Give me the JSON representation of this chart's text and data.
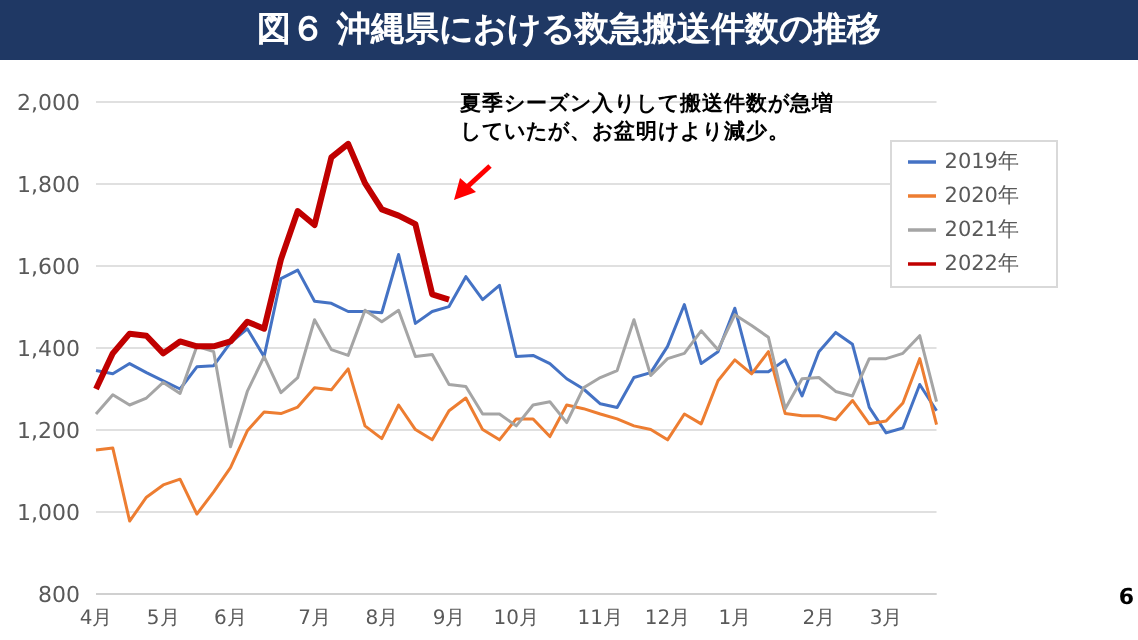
{
  "chart_data": {
    "type": "line",
    "title": "図６ 沖縄県における救急搬送件数の推移",
    "categories": [
      "4月",
      null,
      null,
      null,
      "5月",
      null,
      null,
      null,
      "6月",
      null,
      null,
      null,
      null,
      "7月",
      null,
      null,
      null,
      "8月",
      null,
      null,
      null,
      "9月",
      null,
      null,
      null,
      "10月",
      null,
      null,
      null,
      null,
      "11月",
      null,
      null,
      null,
      "12月",
      null,
      null,
      null,
      "1月",
      null,
      null,
      null,
      null,
      "2月",
      null,
      null,
      null,
      "3月",
      null,
      null,
      null
    ],
    "series": [
      {
        "name": "2019年",
        "color": "#4472c4",
        "values": [
          1345,
          1337,
          1362,
          1340,
          1320,
          1300,
          1354,
          1357,
          1413,
          1447,
          1379,
          1569,
          1590,
          1514,
          1509,
          1489,
          1489,
          1486,
          1628,
          1460,
          1489,
          1501,
          1574,
          1518,
          1553,
          1379,
          1382,
          1362,
          1325,
          1300,
          1264,
          1255,
          1328,
          1340,
          1404,
          1506,
          1362,
          1391,
          1497,
          1342,
          1342,
          1371,
          1283,
          1391,
          1438,
          1409,
          1255,
          1193,
          1205,
          1311,
          1247
        ]
      },
      {
        "name": "2020年",
        "color": "#ed7d31",
        "values": [
          1151,
          1156,
          978,
          1036,
          1066,
          1080,
          995,
          1049,
          1108,
          1198,
          1244,
          1240,
          1256,
          1303,
          1298,
          1349,
          1210,
          1179,
          1261,
          1201,
          1176,
          1247,
          1278,
          1201,
          1176,
          1227,
          1227,
          1184,
          1261,
          1252,
          1239,
          1227,
          1210,
          1201,
          1176,
          1239,
          1215,
          1320,
          1371,
          1337,
          1391,
          1240,
          1235,
          1235,
          1225,
          1272,
          1215,
          1222,
          1266,
          1374,
          1213
        ]
      },
      {
        "name": "2021年",
        "color": "#a5a5a5",
        "values": [
          1239,
          1286,
          1261,
          1278,
          1316,
          1289,
          1404,
          1391,
          1159,
          1294,
          1379,
          1291,
          1328,
          1469,
          1396,
          1382,
          1492,
          1464,
          1492,
          1379,
          1384,
          1311,
          1306,
          1239,
          1239,
          1210,
          1261,
          1269,
          1218,
          1303,
          1328,
          1345,
          1469,
          1333,
          1374,
          1387,
          1442,
          1396,
          1481,
          1455,
          1426,
          1252,
          1325,
          1328,
          1294,
          1283,
          1374,
          1374,
          1387,
          1430,
          1269
        ]
      },
      {
        "name": "2022年",
        "color": "#c00000",
        "values": [
          1300,
          1387,
          1435,
          1430,
          1387,
          1416,
          1404,
          1404,
          1416,
          1464,
          1447,
          1616,
          1734,
          1700,
          1865,
          1898,
          1802,
          1738,
          1723,
          1702,
          1531,
          1518,
          null,
          null,
          null,
          null,
          null,
          null,
          null,
          null,
          null,
          null,
          null,
          null,
          null,
          null,
          null,
          null,
          null,
          null,
          null,
          null,
          null,
          null,
          null,
          null,
          null,
          null,
          null,
          null,
          null
        ]
      }
    ],
    "ylim": [
      800,
      2000
    ],
    "yticks": [
      {
        "value": 800,
        "label": "800"
      },
      {
        "value": 1000,
        "label": "1,000"
      },
      {
        "value": 1200,
        "label": "1,200"
      },
      {
        "value": 1400,
        "label": "1,400"
      },
      {
        "value": 1600,
        "label": "1,600"
      },
      {
        "value": 1800,
        "label": "1,800"
      },
      {
        "value": 2000,
        "label": "2,000"
      }
    ],
    "grid": "y",
    "legend": "top right",
    "marker": "none",
    "line_style": "solid",
    "annotations": [
      "夏季シーズン入りして搬送件数が急増していたが、お盆明けより減少。",
      "6"
    ]
  }
}
